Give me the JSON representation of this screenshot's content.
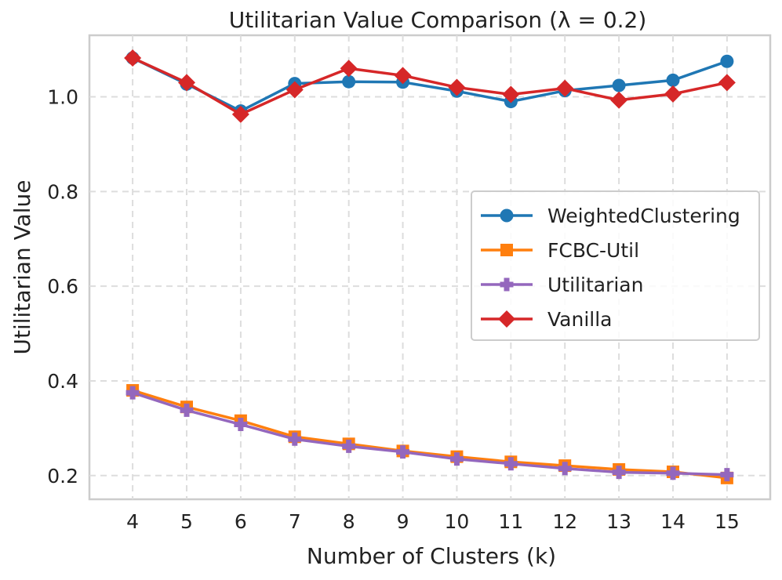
{
  "chart_data": {
    "type": "line",
    "title": "Utilitarian Value Comparison (λ = 0.2)",
    "xlabel": "Number of Clusters (k)",
    "ylabel": "Utilitarian Value",
    "x": [
      4,
      5,
      6,
      7,
      8,
      9,
      10,
      11,
      12,
      13,
      14,
      15
    ],
    "xlim": [
      3.2,
      15.8
    ],
    "ylim": [
      0.15,
      1.13
    ],
    "yticks": [
      0.2,
      0.4,
      0.6,
      0.8,
      1.0
    ],
    "ytick_labels": [
      "0.2",
      "0.4",
      "0.6",
      "0.8",
      "1.0"
    ],
    "grid": true,
    "legend_position": "center-right",
    "series": [
      {
        "name": "WeightedClustering",
        "color": "#1f77b4",
        "marker": "circle",
        "values": [
          1.082,
          1.027,
          0.97,
          1.028,
          1.032,
          1.031,
          1.012,
          0.99,
          1.013,
          1.024,
          1.035,
          1.075
        ]
      },
      {
        "name": "FCBC-Util",
        "color": "#ff7f0e",
        "marker": "square",
        "values": [
          0.38,
          0.345,
          0.316,
          0.282,
          0.267,
          0.252,
          0.24,
          0.229,
          0.221,
          0.213,
          0.208,
          0.195
        ]
      },
      {
        "name": "Utilitarian",
        "color": "#9467bd",
        "marker": "plus",
        "values": [
          0.375,
          0.338,
          0.308,
          0.277,
          0.262,
          0.25,
          0.235,
          0.225,
          0.215,
          0.207,
          0.205,
          0.202
        ]
      },
      {
        "name": "Vanilla",
        "color": "#d62728",
        "marker": "diamond",
        "values": [
          1.082,
          1.03,
          0.963,
          1.015,
          1.06,
          1.045,
          1.02,
          1.005,
          1.018,
          0.993,
          1.006,
          1.03
        ]
      }
    ]
  }
}
